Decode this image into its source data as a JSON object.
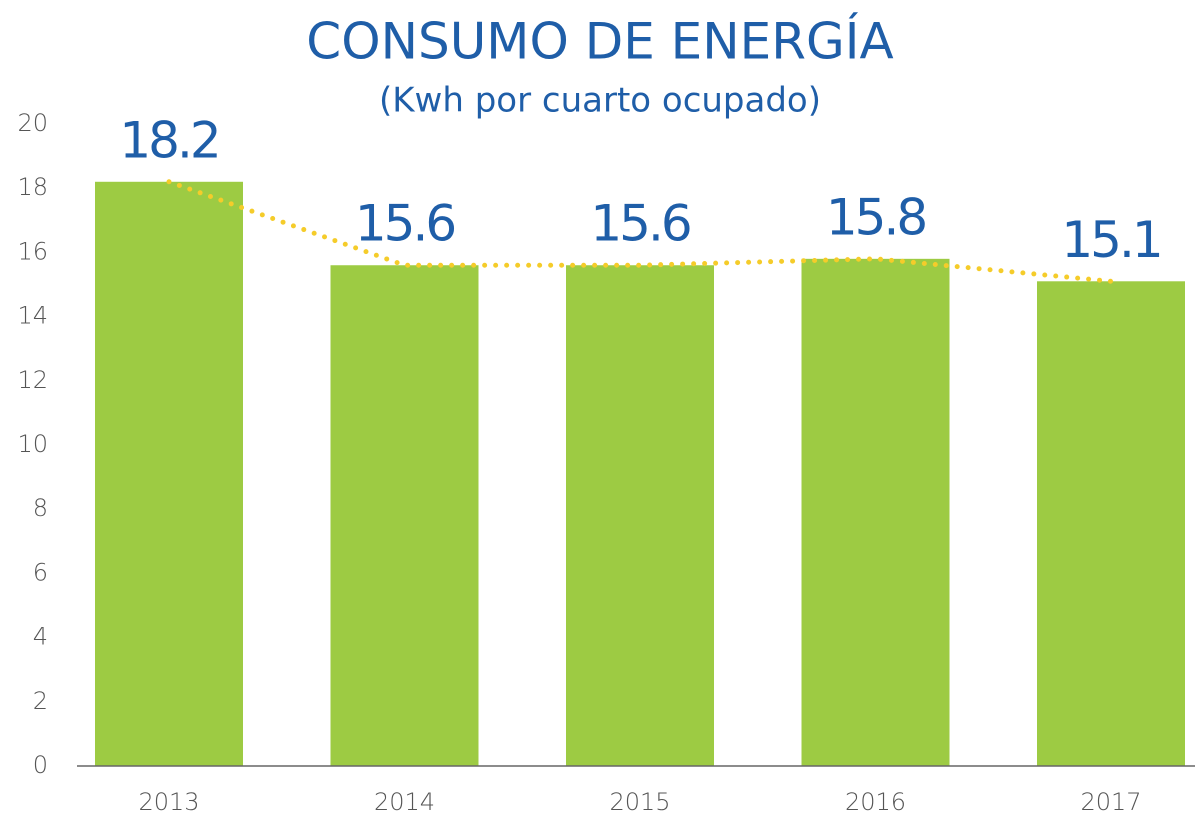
{
  "chart_data": {
    "type": "bar",
    "title": "CONSUMO DE ENERGÍA",
    "subtitle": "(Kwh por cuarto ocupado)",
    "categories": [
      "2013",
      "2014",
      "2015",
      "2016",
      "2017"
    ],
    "values": [
      18.2,
      15.6,
      15.6,
      15.8,
      15.1
    ],
    "color": "#9dcb43",
    "trend_color": "#f5cc2a",
    "ylim": [
      0,
      20
    ],
    "yticks": [
      0,
      2,
      4,
      6,
      8,
      10,
      12,
      14,
      16,
      18,
      20
    ]
  }
}
